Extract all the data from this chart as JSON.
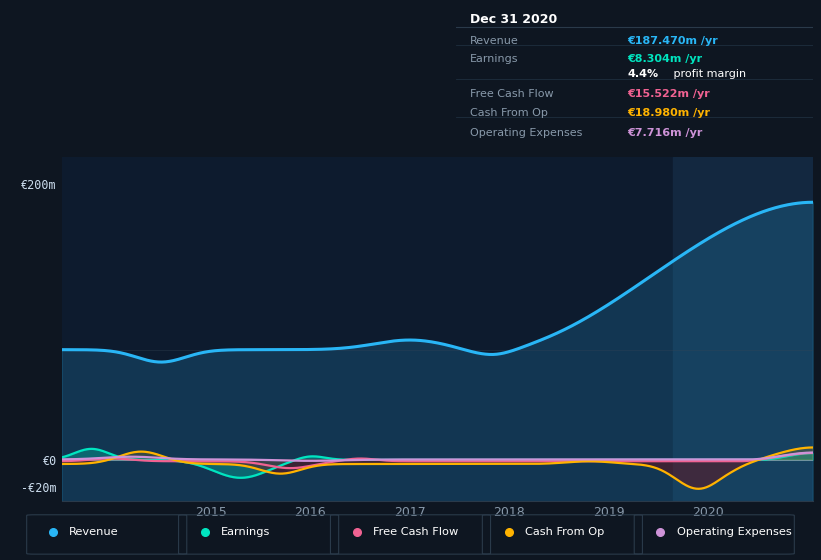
{
  "bg_color": "#0e1621",
  "chart_bg": "#0d1b2e",
  "highlight_color": "#132840",
  "ylim": [
    -30,
    220
  ],
  "revenue_color": "#29b6f6",
  "earnings_color": "#00e5c0",
  "fcf_color": "#f06292",
  "cashop_color": "#ffb300",
  "opex_color": "#ce93d8",
  "legend": [
    {
      "label": "Revenue",
      "color": "#29b6f6"
    },
    {
      "label": "Earnings",
      "color": "#00e5c0"
    },
    {
      "label": "Free Cash Flow",
      "color": "#f06292"
    },
    {
      "label": "Cash From Op",
      "color": "#ffb300"
    },
    {
      "label": "Operating Expenses",
      "color": "#ce93d8"
    }
  ],
  "tooltip_bg": "#050a0f",
  "tooltip_border": "#2a3a4a",
  "tooltip_date": "Dec 31 2020",
  "tooltip_rows": [
    {
      "label": "Revenue",
      "value": "€187.470m /yr",
      "value_color": "#29b6f6",
      "sep_before": true
    },
    {
      "label": "Earnings",
      "value": "€8.304m /yr",
      "value_color": "#00e5c0",
      "sep_before": true
    },
    {
      "label": "",
      "value": "4.4% profit margin",
      "value_color": "#ffffff",
      "sep_before": false,
      "bold_pct": true
    },
    {
      "label": "Free Cash Flow",
      "value": "€15.522m /yr",
      "value_color": "#f06292",
      "sep_before": true
    },
    {
      "label": "Cash From Op",
      "value": "€18.980m /yr",
      "value_color": "#ffb300",
      "sep_before": false
    },
    {
      "label": "Operating Expenses",
      "value": "€7.716m /yr",
      "value_color": "#ce93d8",
      "sep_before": false
    }
  ]
}
